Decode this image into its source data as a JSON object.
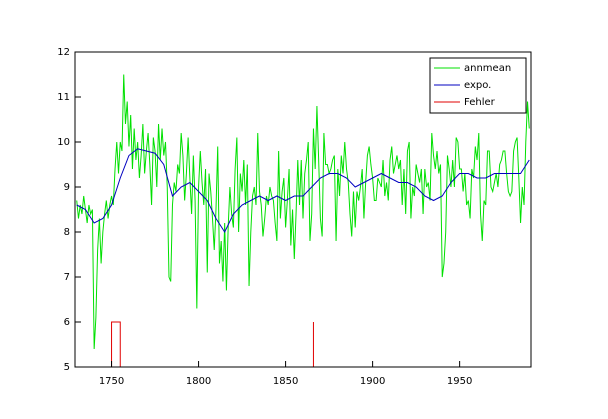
{
  "chart_data": {
    "type": "line",
    "xlim": [
      1729,
      1991
    ],
    "ylim": [
      5,
      12
    ],
    "xticks": [
      1750,
      1800,
      1850,
      1900,
      1950
    ],
    "yticks": [
      5,
      6,
      7,
      8,
      9,
      10,
      11,
      12
    ],
    "legend": "upper right",
    "series": [
      {
        "name": "annmean",
        "color": "#00e000",
        "x": [
          1730,
          1731,
          1732,
          1733,
          1734,
          1735,
          1736,
          1737,
          1738,
          1739,
          1740,
          1741,
          1742,
          1743,
          1744,
          1745,
          1746,
          1747,
          1748,
          1749,
          1750,
          1751,
          1752,
          1753,
          1754,
          1755,
          1756,
          1757,
          1758,
          1759,
          1760,
          1761,
          1762,
          1763,
          1764,
          1765,
          1766,
          1767,
          1768,
          1769,
          1770,
          1771,
          1772,
          1773,
          1774,
          1775,
          1776,
          1777,
          1778,
          1779,
          1780,
          1781,
          1782,
          1783,
          1784,
          1785,
          1786,
          1787,
          1788,
          1789,
          1790,
          1791,
          1792,
          1793,
          1794,
          1795,
          1796,
          1797,
          1798,
          1799,
          1800,
          1801,
          1802,
          1803,
          1804,
          1805,
          1806,
          1807,
          1808,
          1809,
          1810,
          1811,
          1812,
          1813,
          1814,
          1815,
          1816,
          1817,
          1818,
          1819,
          1820,
          1821,
          1822,
          1823,
          1824,
          1825,
          1826,
          1827,
          1828,
          1829,
          1830,
          1831,
          1832,
          1833,
          1834,
          1835,
          1836,
          1837,
          1838,
          1839,
          1840,
          1841,
          1842,
          1843,
          1844,
          1845,
          1846,
          1847,
          1848,
          1849,
          1850,
          1851,
          1852,
          1853,
          1854,
          1855,
          1856,
          1857,
          1858,
          1859,
          1860,
          1861,
          1862,
          1863,
          1864,
          1865,
          1866,
          1867,
          1868,
          1869,
          1870,
          1871,
          1872,
          1873,
          1874,
          1875,
          1876,
          1877,
          1878,
          1879,
          1880,
          1881,
          1882,
          1883,
          1884,
          1885,
          1886,
          1887,
          1888,
          1889,
          1890,
          1891,
          1892,
          1893,
          1894,
          1895,
          1896,
          1897,
          1898,
          1899,
          1900,
          1901,
          1902,
          1903,
          1904,
          1905,
          1906,
          1907,
          1908,
          1909,
          1910,
          1911,
          1912,
          1913,
          1914,
          1915,
          1916,
          1917,
          1918,
          1919,
          1920,
          1921,
          1922,
          1923,
          1924,
          1925,
          1926,
          1927,
          1928,
          1929,
          1930,
          1931,
          1932,
          1933,
          1934,
          1935,
          1936,
          1937,
          1938,
          1939,
          1940,
          1941,
          1942,
          1943,
          1944,
          1945,
          1946,
          1947,
          1948,
          1949,
          1950,
          1951,
          1952,
          1953,
          1954,
          1955,
          1956,
          1957,
          1958,
          1959,
          1960,
          1961,
          1962,
          1963,
          1964,
          1965,
          1966,
          1967,
          1968,
          1969,
          1970,
          1971,
          1972,
          1973,
          1974,
          1975,
          1976,
          1977,
          1978,
          1979,
          1980,
          1981,
          1982,
          1983,
          1984,
          1985,
          1986,
          1987,
          1988,
          1989,
          1990
        ],
        "values": [
          8.7,
          8.3,
          8.6,
          8.4,
          8.8,
          8.5,
          8.2,
          8.6,
          8.4,
          8.5,
          5.4,
          6.1,
          7.6,
          8.3,
          7.3,
          8.0,
          8.4,
          8.7,
          8.3,
          8.6,
          8.8,
          8.6,
          9.4,
          10.0,
          9.3,
          10.0,
          9.8,
          11.5,
          10.4,
          10.9,
          9.9,
          10.6,
          9.4,
          10.3,
          9.6,
          10.0,
          9.2,
          9.7,
          10.4,
          9.3,
          9.8,
          10.2,
          9.5,
          8.6,
          10.1,
          9.8,
          9.0,
          10.4,
          9.6,
          10.3,
          9.7,
          10.0,
          9.0,
          7.0,
          6.9,
          8.6,
          9.1,
          8.9,
          9.5,
          9.3,
          10.2,
          9.7,
          8.7,
          9.3,
          10.1,
          9.2,
          8.4,
          9.7,
          8.7,
          6.3,
          9.0,
          9.8,
          9.1,
          8.6,
          9.4,
          7.1,
          9.3,
          8.9,
          8.3,
          7.6,
          8.5,
          9.9,
          7.3,
          7.8,
          6.9,
          8.2,
          6.7,
          8.1,
          9.0,
          8.4,
          8.1,
          9.4,
          10.1,
          8.0,
          9.3,
          8.9,
          9.6,
          8.6,
          9.5,
          6.8,
          8.0,
          8.8,
          9.0,
          8.6,
          10.2,
          8.9,
          8.6,
          7.9,
          8.3,
          8.8,
          8.6,
          9.0,
          8.8,
          8.7,
          8.2,
          7.8,
          9.8,
          8.3,
          8.9,
          9.2,
          8.1,
          8.7,
          9.4,
          7.7,
          8.5,
          7.4,
          8.4,
          9.6,
          8.6,
          9.6,
          8.3,
          9.3,
          9.6,
          10.0,
          7.8,
          8.4,
          10.3,
          9.4,
          10.8,
          9.6,
          8.3,
          7.9,
          10.2,
          9.5,
          9.5,
          9.3,
          9.4,
          9.6,
          9.7,
          7.8,
          9.4,
          8.8,
          9.7,
          9.3,
          10.0,
          9.4,
          9.1,
          8.4,
          7.9,
          8.9,
          8.1,
          8.9,
          8.7,
          9.0,
          9.4,
          8.3,
          9.1,
          9.7,
          9.9,
          9.5,
          9.2,
          8.7,
          8.7,
          9.2,
          9.1,
          9.0,
          9.6,
          8.8,
          9.1,
          8.7,
          9.6,
          9.9,
          9.3,
          9.5,
          9.7,
          9.4,
          9.6,
          8.6,
          9.4,
          8.4,
          9.8,
          10.0,
          8.3,
          9.0,
          8.8,
          9.5,
          9.3,
          9.1,
          9.4,
          8.4,
          9.4,
          9.0,
          9.1,
          8.7,
          10.2,
          9.7,
          9.4,
          9.8,
          9.3,
          9.5,
          7.0,
          7.3,
          8.0,
          9.7,
          9.4,
          9.0,
          9.6,
          9.0,
          10.1,
          10.0,
          9.4,
          9.4,
          8.9,
          9.3,
          8.6,
          8.7,
          8.3,
          9.4,
          9.2,
          9.9,
          9.6,
          10.2,
          8.4,
          7.8,
          8.7,
          8.6,
          9.8,
          9.8,
          9.0,
          8.9,
          9.1,
          9.3,
          9.0,
          9.5,
          9.6,
          9.8,
          9.8,
          9.3,
          8.9,
          8.8,
          8.9,
          9.8,
          10.0,
          10.1,
          9.2,
          8.2,
          9.0,
          8.6,
          10.0,
          10.9,
          10.3
        ]
      },
      {
        "name": "expo.",
        "color": "#0000c0",
        "x": [
          1730,
          1735,
          1740,
          1745,
          1750,
          1755,
          1760,
          1765,
          1770,
          1775,
          1780,
          1785,
          1790,
          1795,
          1800,
          1805,
          1810,
          1815,
          1820,
          1825,
          1830,
          1835,
          1840,
          1845,
          1850,
          1855,
          1860,
          1865,
          1870,
          1875,
          1880,
          1885,
          1890,
          1895,
          1900,
          1905,
          1910,
          1915,
          1920,
          1925,
          1930,
          1935,
          1940,
          1945,
          1950,
          1955,
          1960,
          1965,
          1970,
          1975,
          1980,
          1985,
          1990
        ],
        "values": [
          8.6,
          8.5,
          8.2,
          8.3,
          8.6,
          9.2,
          9.7,
          9.85,
          9.8,
          9.75,
          9.5,
          8.8,
          9.0,
          9.1,
          8.9,
          8.7,
          8.3,
          8.0,
          8.4,
          8.6,
          8.7,
          8.8,
          8.7,
          8.8,
          8.7,
          8.8,
          8.8,
          9.0,
          9.2,
          9.3,
          9.3,
          9.2,
          9.0,
          9.1,
          9.2,
          9.3,
          9.2,
          9.1,
          9.1,
          9.0,
          8.8,
          8.7,
          8.8,
          9.1,
          9.3,
          9.3,
          9.2,
          9.2,
          9.3,
          9.3,
          9.3,
          9.3,
          9.6
        ]
      },
      {
        "name": "Fehler",
        "color": "#e00000",
        "x": [
          1729,
          1750,
          1750,
          1755,
          1755,
          1866,
          1866,
          1866,
          1990
        ],
        "values": [
          5,
          5,
          6,
          6,
          5,
          5,
          6,
          5,
          5
        ]
      }
    ]
  }
}
